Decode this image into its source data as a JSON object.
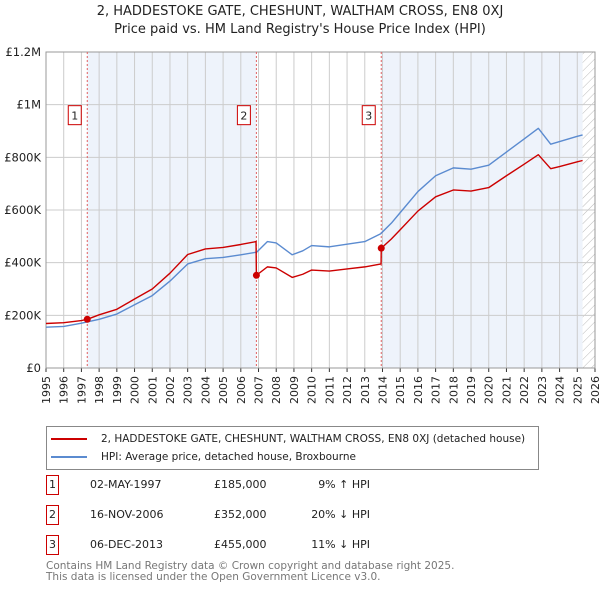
{
  "title": "2, HADDESTOKE GATE, CHESHUNT, WALTHAM CROSS, EN8 0XJ",
  "subtitle": "Price paid vs. HM Land Registry's House Price Index (HPI)",
  "chart_data": {
    "type": "line",
    "xlim": [
      1995,
      2026
    ],
    "ylim": [
      0,
      1200000
    ],
    "x_ticks": [
      "1995",
      "1996",
      "1997",
      "1998",
      "1999",
      "2000",
      "2001",
      "2002",
      "2003",
      "2004",
      "2005",
      "2006",
      "2007",
      "2008",
      "2009",
      "2010",
      "2011",
      "2012",
      "2013",
      "2014",
      "2015",
      "2016",
      "2017",
      "2018",
      "2019",
      "2020",
      "2021",
      "2022",
      "2023",
      "2024",
      "2025",
      "2026"
    ],
    "y_ticks": [
      {
        "v": 0,
        "label": "£0"
      },
      {
        "v": 200000,
        "label": "£200K"
      },
      {
        "v": 400000,
        "label": "£400K"
      },
      {
        "v": 600000,
        "label": "£600K"
      },
      {
        "v": 800000,
        "label": "£800K"
      },
      {
        "v": 1000000,
        "label": "£1M"
      },
      {
        "v": 1200000,
        "label": "£1.2M"
      }
    ],
    "shaded_ranges": [
      [
        1997.33,
        2006.88
      ],
      [
        2013.93,
        2025.3
      ]
    ],
    "forecast_from": 2025.3,
    "series": [
      {
        "name": "2, HADDESTOKE GATE, CHESHUNT, WALTHAM CROSS, EN8 0XJ (detached house)",
        "color": "#cc0000",
        "x": [
          1995,
          1996,
          1997,
          1997.33,
          1998,
          1999,
          2000,
          2001,
          2002,
          2003,
          2004,
          2005,
          2006,
          2006.86,
          2006.88,
          2007.5,
          2008,
          2008.9,
          2009.5,
          2010,
          2011,
          2012,
          2013,
          2013.92,
          2013.93,
          2014.5,
          2015,
          2016,
          2017,
          2018,
          2019,
          2020,
          2021,
          2022,
          2022.8,
          2023.5,
          2024,
          2025,
          2025.3
        ],
        "y": [
          169000,
          172000,
          180000,
          185000,
          202000,
          223000,
          262000,
          300000,
          360000,
          431000,
          452000,
          458000,
          469000,
          480000,
          352000,
          384000,
          380000,
          344000,
          356000,
          372000,
          368000,
          376000,
          384000,
          395000,
          455000,
          490000,
          525000,
          596000,
          650000,
          676000,
          672000,
          685000,
          730000,
          774000,
          810000,
          757000,
          765000,
          783000,
          788000
        ]
      },
      {
        "name": "HPI: Average price, detached house, Broxbourne",
        "color": "#5b8bd0",
        "x": [
          1995,
          1996,
          1997,
          1998,
          1999,
          2000,
          2001,
          2002,
          2003,
          2004,
          2005,
          2006,
          2006.9,
          2007.5,
          2008,
          2008.9,
          2009.5,
          2010,
          2011,
          2012,
          2013,
          2013.9,
          2014.5,
          2015,
          2016,
          2017,
          2018,
          2019,
          2020,
          2021,
          2022,
          2022.8,
          2023.5,
          2024,
          2025,
          2025.3
        ],
        "y": [
          155000,
          158000,
          170000,
          185000,
          205000,
          240000,
          275000,
          330000,
          395000,
          415000,
          420000,
          430000,
          440000,
          480000,
          475000,
          430000,
          445000,
          465000,
          460000,
          470000,
          480000,
          510000,
          550000,
          590000,
          670000,
          730000,
          760000,
          755000,
          770000,
          820000,
          870000,
          910000,
          850000,
          860000,
          880000,
          885000
        ]
      }
    ],
    "sales": [
      {
        "n": "1",
        "x": 1997.33,
        "price": 185000,
        "date": "02-MAY-1997",
        "price_label": "£185,000",
        "hpi": "9% ↑ HPI"
      },
      {
        "n": "2",
        "x": 2006.88,
        "price": 352000,
        "date": "16-NOV-2006",
        "price_label": "£352,000",
        "hpi": "20% ↓ HPI"
      },
      {
        "n": "3",
        "x": 2013.93,
        "price": 455000,
        "date": "06-DEC-2013",
        "price_label": "£455,000",
        "hpi": "11% ↓ HPI"
      }
    ]
  },
  "legend": {
    "property": "2, HADDESTOKE GATE, CHESHUNT, WALTHAM CROSS, EN8 0XJ (detached house)",
    "hpi": "HPI: Average price, detached house, Broxbourne"
  },
  "footer": {
    "line1": "Contains HM Land Registry data © Crown copyright and database right 2025.",
    "line2": "This data is licensed under the Open Government Licence v3.0."
  }
}
